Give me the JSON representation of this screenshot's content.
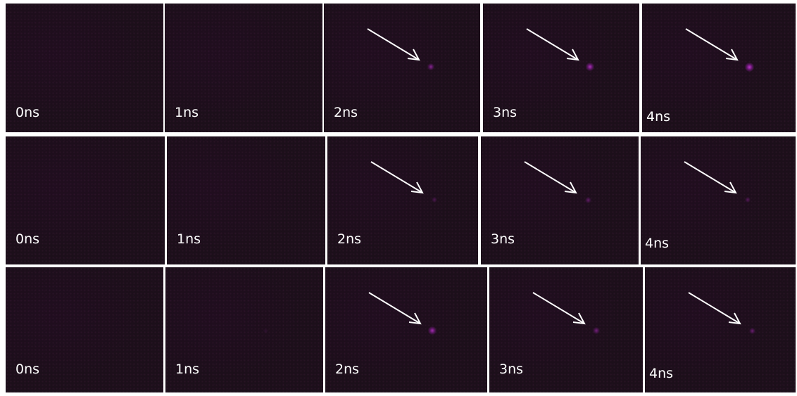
{
  "colors": {
    "background": "#ffffff",
    "frame": "#1c0f1a",
    "label": "#ffffff",
    "arrow": "#ffffff",
    "spot": "#c02bd6"
  },
  "icon": "arrow-icon",
  "rows": [
    {
      "frames": [
        {
          "label": "0ns",
          "spot_intensity": 0
        },
        {
          "label": "1ns",
          "spot_intensity": 0
        },
        {
          "label": "2ns",
          "spot_intensity": 0.55
        },
        {
          "label": "3ns",
          "spot_intensity": 0.75
        },
        {
          "label": "4ns",
          "spot_intensity": 0.85
        }
      ]
    },
    {
      "frames": [
        {
          "label": "0ns",
          "spot_intensity": 0
        },
        {
          "label": "1ns",
          "spot_intensity": 0
        },
        {
          "label": "2ns",
          "spot_intensity": 0.25
        },
        {
          "label": "3ns",
          "spot_intensity": 0.35
        },
        {
          "label": "4ns",
          "spot_intensity": 0.3
        }
      ]
    },
    {
      "frames": [
        {
          "label": "0ns",
          "spot_intensity": 0
        },
        {
          "label": "1ns",
          "spot_intensity": 0.1
        },
        {
          "label": "2ns",
          "spot_intensity": 0.7
        },
        {
          "label": "3ns",
          "spot_intensity": 0.45
        },
        {
          "label": "4ns",
          "spot_intensity": 0.4
        }
      ]
    }
  ]
}
